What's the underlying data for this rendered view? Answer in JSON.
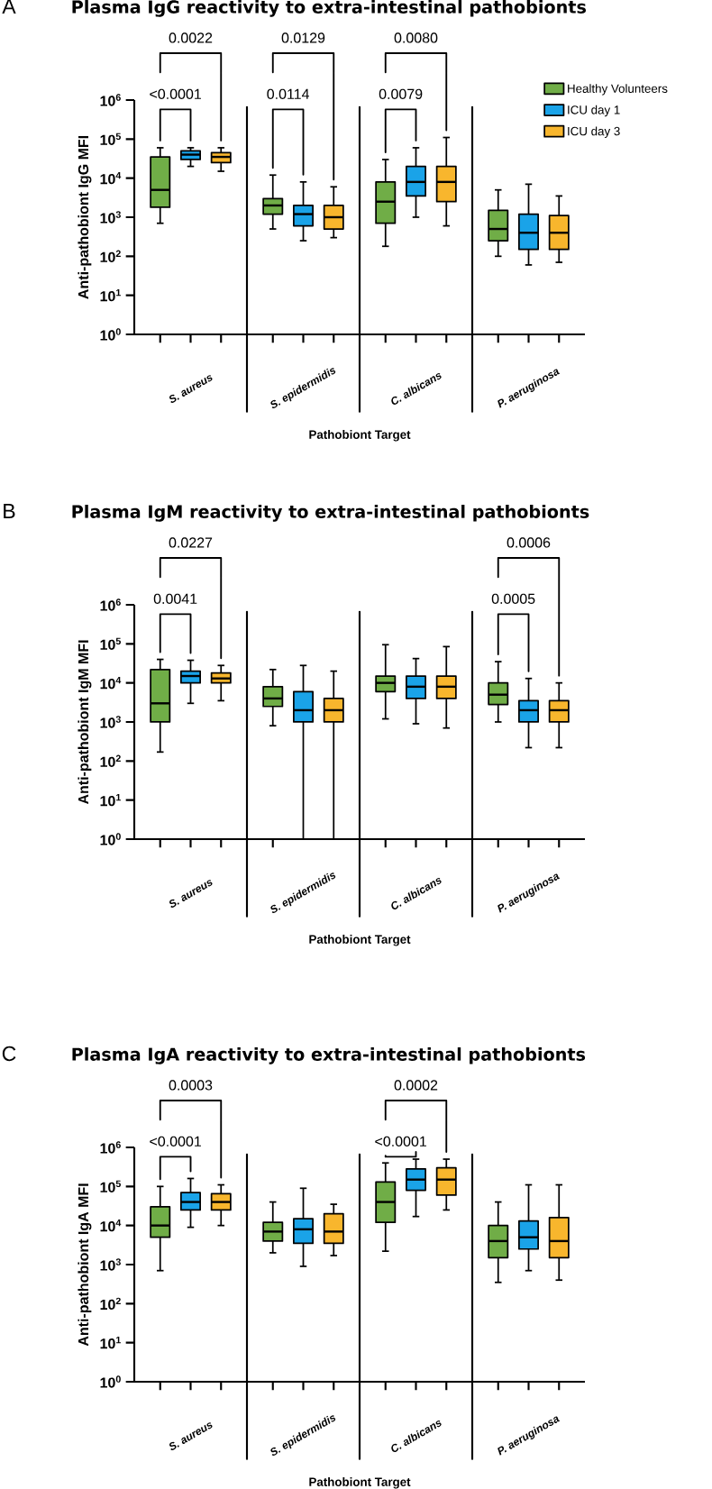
{
  "chart_data": [
    {
      "type": "box",
      "title": "Plasma IgG reactivity to extra-intestinal pathobionts",
      "xlabel": "Pathobiont Target",
      "ylabel": "Anti-pathobiont IgG MFI",
      "categories": [
        "S. aureus",
        "S. epidermidis",
        "C. albicans",
        "P. aeruginosa"
      ],
      "log": true,
      "ylim": [
        1,
        1000000
      ],
      "yticks": [
        {
          "value": 1,
          "label": "10$^{0}$"
        },
        {
          "value": 10,
          "label": "10$^{1}$"
        },
        {
          "value": 100,
          "label": "10$^{2}$"
        },
        {
          "value": 1000,
          "label": "10$^{3}$"
        },
        {
          "value": 10000,
          "label": "10$^{4}$"
        },
        {
          "value": 100000,
          "label": "10$^{5}$"
        },
        {
          "value": 1000000,
          "label": "10$^{6}$"
        }
      ],
      "legend": "top right",
      "series": [
        {
          "name": "Healthy Volunteers",
          "color": "#70ad47",
          "boxes": [
            {
              "low": 700,
              "q1": 1800,
              "median": 5000,
              "q3": 35000,
              "high": 60000
            },
            {
              "low": 500,
              "q1": 1200,
              "median": 2000,
              "q3": 3000,
              "high": 12000
            },
            {
              "low": 180,
              "q1": 700,
              "median": 2500,
              "q3": 8000,
              "high": 30000
            },
            {
              "low": 100,
              "q1": 250,
              "median": 500,
              "q3": 1500,
              "high": 5000
            }
          ]
        },
        {
          "name": "ICU day 1",
          "color": "#1aa3e8",
          "boxes": [
            {
              "low": 20000,
              "q1": 30000,
              "median": 40000,
              "q3": 50000,
              "high": 60000
            },
            {
              "low": 250,
              "q1": 600,
              "median": 1200,
              "q3": 2000,
              "high": 8000
            },
            {
              "low": 1000,
              "q1": 3500,
              "median": 8000,
              "q3": 20000,
              "high": 60000
            },
            {
              "low": 60,
              "q1": 150,
              "median": 400,
              "q3": 1200,
              "high": 7000
            }
          ]
        },
        {
          "name": "ICU day 3",
          "color": "#f8b62d",
          "boxes": [
            {
              "low": 15000,
              "q1": 25000,
              "median": 35000,
              "q3": 45000,
              "high": 60000
            },
            {
              "low": 300,
              "q1": 500,
              "median": 1000,
              "q3": 2000,
              "high": 6000
            },
            {
              "low": 600,
              "q1": 2500,
              "median": 8000,
              "q3": 20000,
              "high": 110000
            },
            {
              "low": 70,
              "q1": 150,
              "median": 400,
              "q3": 1100,
              "high": 3500
            }
          ]
        }
      ],
      "annotations": [
        "A",
        "0.0022",
        "<0.0001",
        "0.0129",
        "0.0114",
        "0.0080",
        "0.0079"
      ]
    },
    {
      "type": "box",
      "title": "Plasma IgM reactivity to extra-intestinal pathobionts",
      "xlabel": "Pathobiont Target",
      "ylabel": "Anti-pathobiont IgM MFI",
      "categories": [
        "S. aureus",
        "S. epidermidis",
        "C. albicans",
        "P. aeruginosa"
      ],
      "log": true,
      "ylim": [
        1,
        1000000
      ],
      "yticks": [
        {
          "value": 1,
          "label": "10$^{0}$"
        },
        {
          "value": 10,
          "label": "10$^{1}$"
        },
        {
          "value": 100,
          "label": "10$^{2}$"
        },
        {
          "value": 1000,
          "label": "10$^{3}$"
        },
        {
          "value": 10000,
          "label": "10$^{4}$"
        },
        {
          "value": 100000,
          "label": "10$^{5}$"
        },
        {
          "value": 1000000,
          "label": "10$^{6}$"
        }
      ],
      "series": [
        {
          "color": "#70ad47",
          "boxes": [
            {
              "low": 170,
              "q1": 1000,
              "median": 3000,
              "q3": 22000,
              "high": 40000
            },
            {
              "low": 800,
              "q1": 2500,
              "median": 4000,
              "q3": 8000,
              "high": 22000
            },
            {
              "low": 1200,
              "q1": 6000,
              "median": 10000,
              "q3": 15000,
              "high": 95000
            },
            {
              "low": 1000,
              "q1": 2800,
              "median": 5000,
              "q3": 10000,
              "high": 35000
            }
          ]
        },
        {
          "color": "#1aa3e8",
          "boxes": [
            {
              "low": 3000,
              "q1": 10000,
              "median": 15000,
              "q3": 20000,
              "high": 38000
            },
            {
              "low": 1,
              "q1": 1000,
              "median": 2000,
              "q3": 6000,
              "high": 28000
            },
            {
              "low": 900,
              "q1": 4000,
              "median": 8000,
              "q3": 15000,
              "high": 42000
            },
            {
              "low": 220,
              "q1": 1000,
              "median": 2000,
              "q3": 3500,
              "high": 13000
            }
          ]
        },
        {
          "color": "#f8b62d",
          "boxes": [
            {
              "low": 3500,
              "q1": 10000,
              "median": 13000,
              "q3": 18000,
              "high": 28000
            },
            {
              "low": 1,
              "q1": 1000,
              "median": 2000,
              "q3": 4000,
              "high": 20000
            },
            {
              "low": 700,
              "q1": 4000,
              "median": 8000,
              "q3": 15000,
              "high": 85000
            },
            {
              "low": 220,
              "q1": 1000,
              "median": 2000,
              "q3": 3500,
              "high": 10000
            }
          ]
        }
      ],
      "annotations": [
        "B",
        "0.0227",
        "0.0041",
        "0.0006",
        "0.0005"
      ]
    },
    {
      "type": "box",
      "title": "Plasma IgA reactivity to extra-intestinal pathobionts",
      "xlabel": "Pathobiont Target",
      "ylabel": "Anti-pathobiont IgA MFI",
      "categories": [
        "S. aureus",
        "S. epidermidis",
        "C. albicans",
        "P. aeruginosa"
      ],
      "log": true,
      "ylim": [
        1,
        1000000
      ],
      "yticks": [
        {
          "value": 1,
          "label": "10$^{0}$"
        },
        {
          "value": 10,
          "label": "10$^{1}$"
        },
        {
          "value": 100,
          "label": "10$^{2}$"
        },
        {
          "value": 1000,
          "label": "10$^{3}$"
        },
        {
          "value": 10000,
          "label": "10$^{4}$"
        },
        {
          "value": 100000,
          "label": "10$^{5}$"
        },
        {
          "value": 1000000,
          "label": "10$^{6}$"
        }
      ],
      "series": [
        {
          "color": "#70ad47",
          "boxes": [
            {
              "low": 700,
              "q1": 5000,
              "median": 10000,
              "q3": 30000,
              "high": 100000
            },
            {
              "low": 2000,
              "q1": 4000,
              "median": 7000,
              "q3": 12000,
              "high": 40000
            },
            {
              "low": 2200,
              "q1": 12000,
              "median": 40000,
              "q3": 130000,
              "high": 400000
            },
            {
              "low": 350,
              "q1": 1500,
              "median": 4000,
              "q3": 10000,
              "high": 40000
            }
          ]
        },
        {
          "color": "#1aa3e8",
          "boxes": [
            {
              "low": 9000,
              "q1": 25000,
              "median": 40000,
              "q3": 70000,
              "high": 160000
            },
            {
              "low": 900,
              "q1": 3500,
              "median": 8000,
              "q3": 15000,
              "high": 90000
            },
            {
              "low": 17000,
              "q1": 80000,
              "median": 150000,
              "q3": 280000,
              "high": 500000
            },
            {
              "low": 700,
              "q1": 2500,
              "median": 5000,
              "q3": 13000,
              "high": 110000
            }
          ]
        },
        {
          "color": "#f8b62d",
          "boxes": [
            {
              "low": 10000,
              "q1": 25000,
              "median": 40000,
              "q3": 65000,
              "high": 110000
            },
            {
              "low": 1700,
              "q1": 3500,
              "median": 7000,
              "q3": 20000,
              "high": 35000
            },
            {
              "low": 25000,
              "q1": 60000,
              "median": 150000,
              "q3": 300000,
              "high": 500000
            },
            {
              "low": 400,
              "q1": 1500,
              "median": 4000,
              "q3": 16000,
              "high": 110000
            }
          ]
        }
      ],
      "annotations": [
        "C",
        "0.0003",
        "<0.0001",
        "0.0002",
        "<0.0001"
      ]
    }
  ]
}
